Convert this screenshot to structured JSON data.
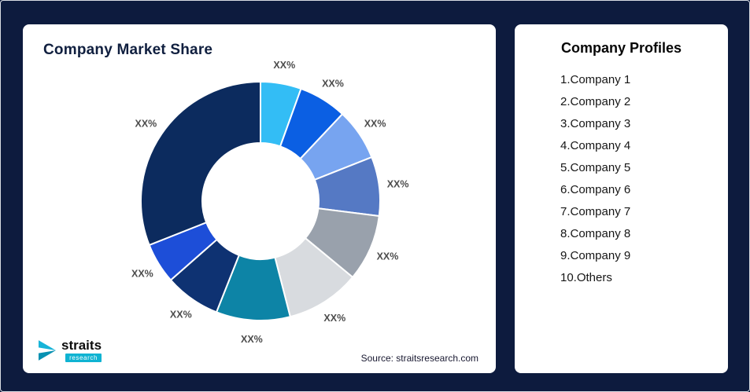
{
  "page": {
    "background": "#0d1b3e"
  },
  "market_share_card": {
    "title": "Company Market Share",
    "source_text": "Source: straitsresearch.com",
    "logo": {
      "brand": "straits",
      "sub_brand": "research"
    }
  },
  "profiles_card": {
    "title": "Company Profiles",
    "items": [
      "1.Company 1",
      "2.Company 2",
      "3.Company 3",
      "4.Company 4",
      "5.Company 5",
      "6.Company 6",
      "7.Company 7",
      "8.Company 8",
      "9.Company 9",
      "10.Others"
    ]
  },
  "chart_data": {
    "type": "pie",
    "subtype": "donut",
    "title": "Company Market Share",
    "categories": [
      "Company 1",
      "Company 2",
      "Company 3",
      "Company 4",
      "Company 5",
      "Company 6",
      "Company 7",
      "Company 8",
      "Company 9",
      "Others"
    ],
    "labels": [
      "XX%",
      "XX%",
      "XX%",
      "XX%",
      "XX%",
      "XX%",
      "XX%",
      "XX%",
      "XX%",
      "XX%"
    ],
    "values": [
      5.5,
      6.5,
      7,
      8,
      9,
      10,
      10,
      7.5,
      5.5,
      31
    ],
    "colors": [
      "#33bdf5",
      "#0b5fe3",
      "#77a4f0",
      "#5579c4",
      "#99a1ac",
      "#d8dbdf",
      "#0d84a6",
      "#0e3272",
      "#1d4ed8",
      "#0c2b5e"
    ],
    "start_angle_deg": -90,
    "direction": "clockwise",
    "inner_radius_ratio": 0.49,
    "legend": "none",
    "label_position": "outside"
  }
}
